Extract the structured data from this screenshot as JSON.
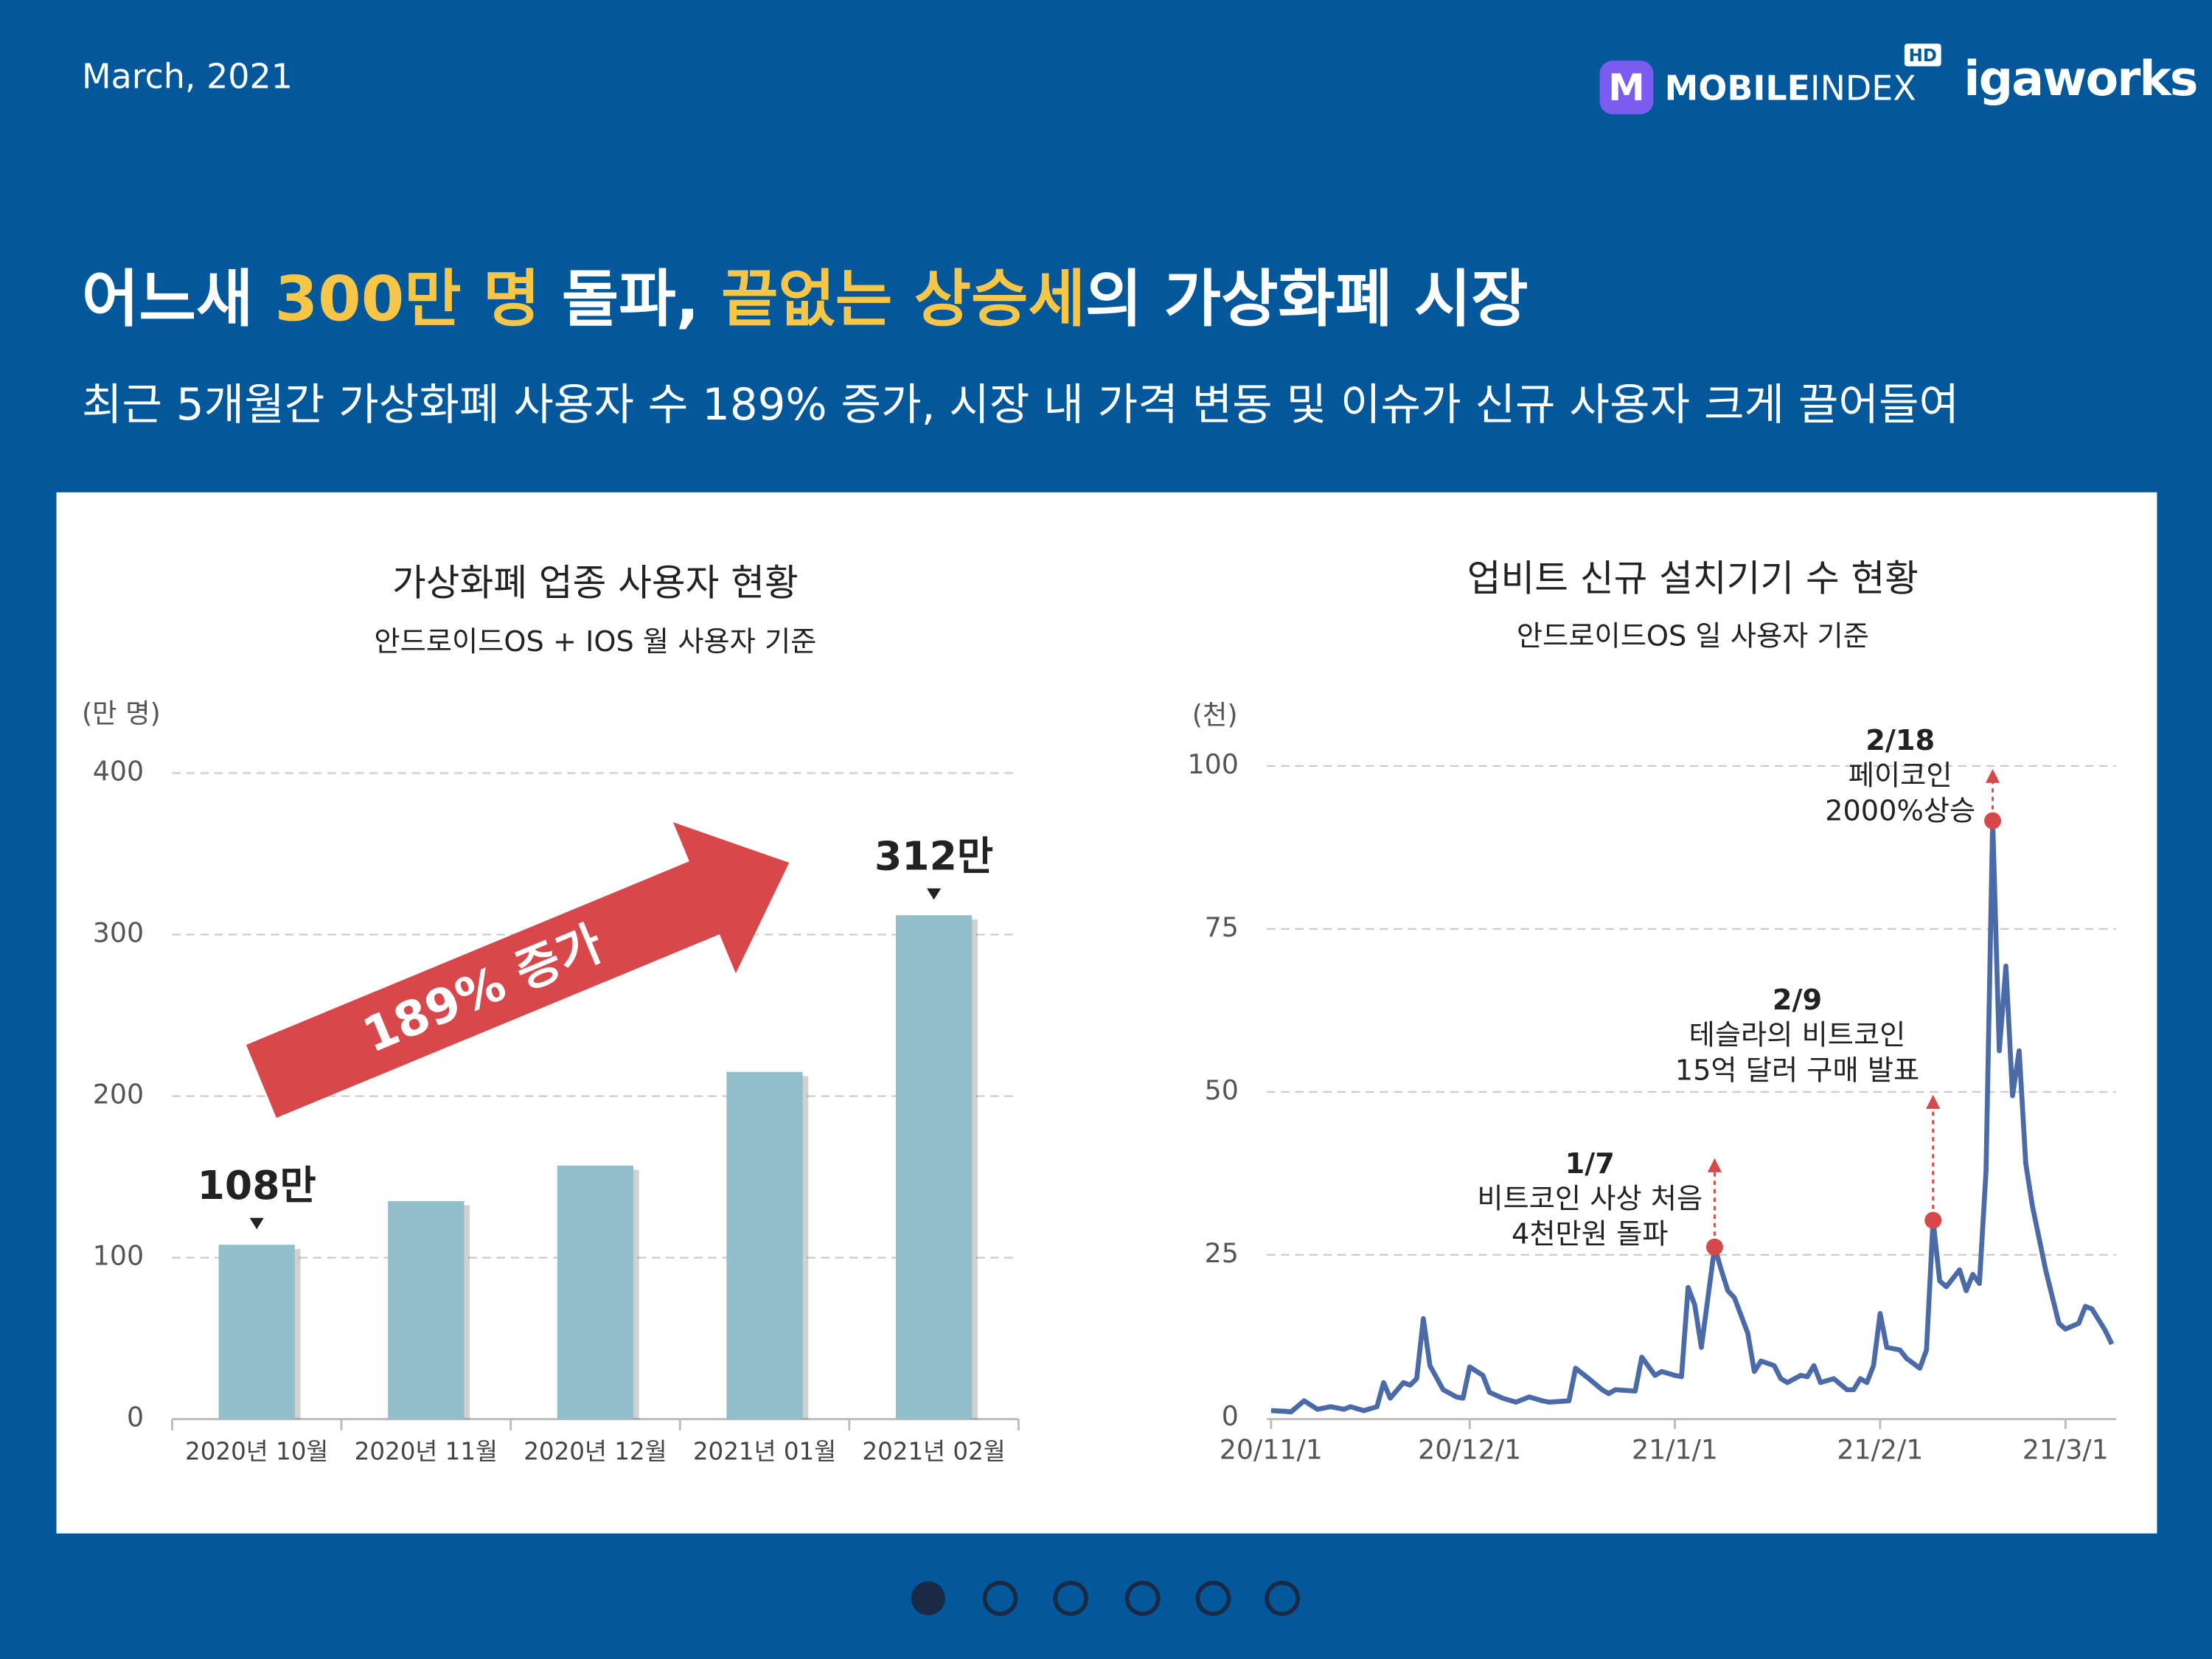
{
  "date": "March, 2021",
  "brand": {
    "icon": "M",
    "mobile": "MOBILE",
    "index": "INDEX",
    "hd": "HD",
    "company": "igaworks"
  },
  "title": [
    {
      "text": "어느새 "
    },
    {
      "text": "300만 명",
      "color": "#f7c548"
    },
    {
      "text": " 돌파, "
    },
    {
      "text": "끝없는 상승세",
      "color": "#f7c548"
    },
    {
      "text": "의 가상화폐 시장"
    }
  ],
  "subtitle": "최근 5개월간 가상화폐 사용자 수 189% 증가, 시장 내 가격 변동 및 이슈가 신규 사용자 크게 끌어들여",
  "chart_data": [
    {
      "type": "bar",
      "title": "가상화폐 업종 사용자 현황",
      "subtitle": "안드로이드OS + IOS 월 사용자 기준",
      "y_label": "(만 명)",
      "categories": [
        "2020년 10월",
        "2020년 11월",
        "2020년 12월",
        "2021년 01월",
        "2021년 02월"
      ],
      "values": [
        108,
        135,
        157,
        215,
        312
      ],
      "value_labels": [
        "108만",
        null,
        null,
        null,
        "312만"
      ],
      "color": "#93bfcc",
      "ylim": [
        0,
        400
      ],
      "yticks": [
        0,
        100,
        200,
        300,
        400
      ],
      "grid": true,
      "annotation": "189% 증가"
    },
    {
      "type": "line",
      "title": "업비트 신규 설치기기 수 현황",
      "subtitle": "안드로이드OS 일 사용자 기준",
      "y_label": "(천)",
      "x": [
        "20/11/1",
        "20/11/3",
        "20/11/4",
        "20/11/6",
        "20/11/8",
        "20/11/10",
        "20/11/12",
        "20/11/13",
        "20/11/15",
        "20/11/17",
        "20/11/18",
        "20/11/19",
        "20/11/21",
        "20/11/22",
        "20/11/23",
        "20/11/24",
        "20/11/25",
        "20/11/27",
        "20/11/29",
        "20/11/30",
        "20/12/1",
        "20/12/3",
        "20/12/4",
        "20/12/6",
        "20/12/8",
        "20/12/10",
        "20/12/12",
        "20/12/13",
        "20/12/16",
        "20/12/17",
        "20/12/19",
        "20/12/21",
        "20/12/22",
        "20/12/23",
        "20/12/26",
        "20/12/27",
        "20/12/29",
        "20/12/30",
        "21/1/1",
        "21/1/2",
        "21/1/3",
        "21/1/4",
        "21/1/5",
        "21/1/7",
        "21/1/8",
        "21/1/9",
        "21/1/10",
        "21/1/12",
        "21/1/13",
        "21/1/14",
        "21/1/16",
        "21/1/17",
        "21/1/18",
        "21/1/20",
        "21/1/21",
        "21/1/22",
        "21/1/23",
        "21/1/25",
        "21/1/27",
        "21/1/28",
        "21/1/29",
        "21/1/30",
        "21/1/31",
        "21/2/1",
        "21/2/2",
        "21/2/4",
        "21/2/5",
        "21/2/7",
        "21/2/8",
        "21/2/9",
        "21/2/10",
        "21/2/11",
        "21/2/13",
        "21/2/14",
        "21/2/15",
        "21/2/16",
        "21/2/17",
        "21/2/18",
        "21/2/19",
        "21/2/20",
        "21/2/21",
        "21/2/22",
        "21/2/23",
        "21/2/24",
        "21/2/26",
        "21/2/28",
        "21/3/1",
        "21/3/3",
        "21/3/4",
        "21/3/5",
        "21/3/7",
        "21/3/8"
      ],
      "series": [
        {
          "name": "업비트 신규 설치기기 수",
          "color": "#4a6aa8",
          "values": [
            1.1,
            1,
            0.9,
            2.6,
            1.3,
            1.7,
            1.3,
            1.7,
            1.1,
            1.7,
            5.4,
            3,
            5.4,
            5,
            6,
            15.2,
            8,
            4.3,
            3.2,
            3,
            7.8,
            6.5,
            3.9,
            3,
            2.4,
            3.2,
            2.6,
            2.4,
            2.6,
            7.6,
            6,
            4.3,
            3.7,
            4.3,
            4.1,
            9.3,
            6.5,
            7.1,
            6.5,
            6.3,
            20,
            17.3,
            10.8,
            26.2,
            22.7,
            19.5,
            18.4,
            13,
            7.1,
            8.7,
            8,
            6,
            5.4,
            6.5,
            6.3,
            8,
            5.4,
            6,
            4.3,
            4.3,
            6,
            5.4,
            8,
            16,
            10.8,
            10.4,
            9.1,
            7.6,
            10.4,
            30.3,
            21,
            20.1,
            22.7,
            19.5,
            22,
            20.6,
            37.9,
            91.6,
            56.3,
            69.3,
            49.4,
            56.3,
            39,
            32.5,
            22.7,
            14.5,
            13.6,
            14.5,
            17.1,
            16.7,
            13.4,
            11.3
          ]
        }
      ],
      "xlim": [
        "20/11/1",
        "21/3/8"
      ],
      "xticks": [
        "20/11/1",
        "20/12/1",
        "21/1/1",
        "21/2/1",
        "21/3/1"
      ],
      "ylim": [
        0,
        100
      ],
      "yticks": [
        0,
        25,
        50,
        75,
        100
      ],
      "grid": true,
      "annotations": [
        {
          "x": "21/1/7",
          "date": "1/7",
          "lines": [
            "비트코인 사상 처음",
            "4천만원 돌파"
          ]
        },
        {
          "x": "21/2/9",
          "date": "2/9",
          "lines": [
            "테슬라의 비트코인",
            "15억 달러 구매 발표"
          ]
        },
        {
          "x": "21/2/18",
          "date": "2/18",
          "lines": [
            "페이코인",
            "2000%상승"
          ]
        }
      ]
    }
  ]
}
